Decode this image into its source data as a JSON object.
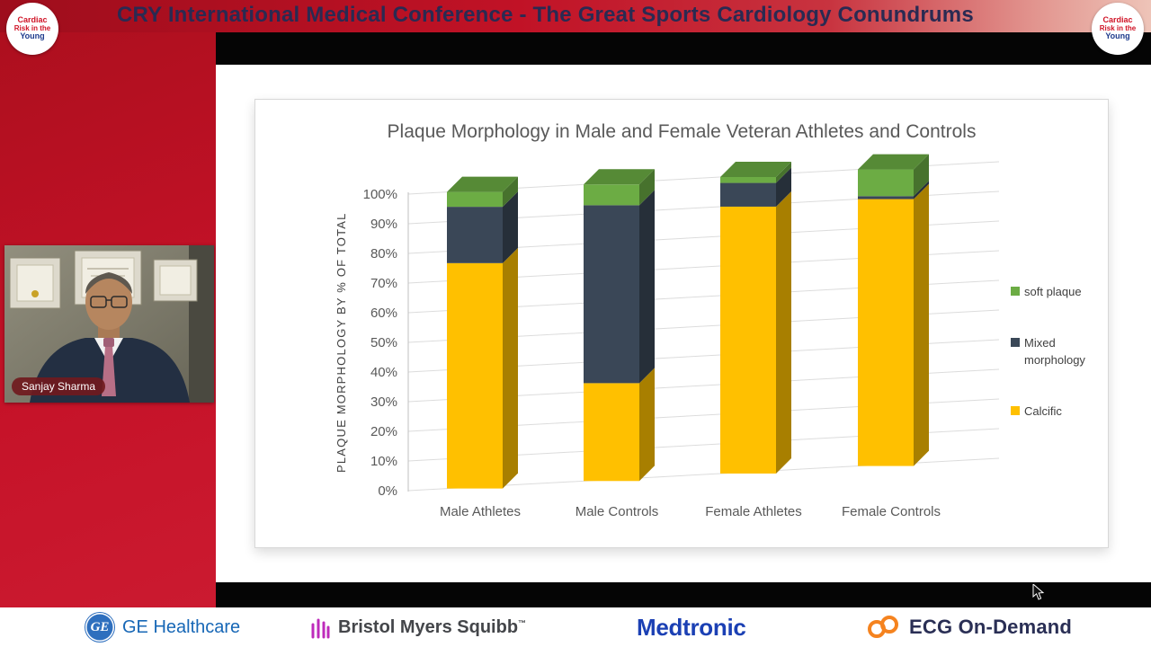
{
  "banner": {
    "title": "CRY International Medical Conference - The Great Sports Cardiology Conundrums"
  },
  "cry_logo": {
    "line1": "Cardiac",
    "line2": "Risk in the",
    "line3": "Young"
  },
  "speaker": {
    "name": "Sanjay Sharma"
  },
  "chart_data": {
    "type": "bar",
    "variant": "3d-stacked-column",
    "title": "Plaque Morphology in Male and Female Veteran Athletes and Controls",
    "ylabel": "PLAQUE MORPHOLOGY BY % OF TOTAL",
    "xlabel": "",
    "categories": [
      "Male Athletes",
      "Male Controls",
      "Female Athletes",
      "Female Controls"
    ],
    "series": [
      {
        "name": "Calcific",
        "color": "#FFC000",
        "values": [
          76,
          33,
          90,
          90
        ]
      },
      {
        "name": "Mixed morphology",
        "color": "#3A4757",
        "values": [
          19,
          60,
          8,
          1
        ]
      },
      {
        "name": "soft plaque",
        "color": "#6CAC44",
        "values": [
          5,
          7,
          2,
          9
        ]
      }
    ],
    "yticks": [
      "0%",
      "10%",
      "20%",
      "30%",
      "40%",
      "50%",
      "60%",
      "70%",
      "80%",
      "90%",
      "100%"
    ],
    "ylim": [
      0,
      100
    ],
    "legend_position": "right",
    "grid": true
  },
  "sponsors": {
    "ge_monogram": "GE",
    "ge": "GE Healthcare",
    "bms": "Bristol Myers Squibb",
    "bms_tm": "™",
    "medtronic": "Medtronic",
    "ecg": "ECG On-Demand"
  }
}
